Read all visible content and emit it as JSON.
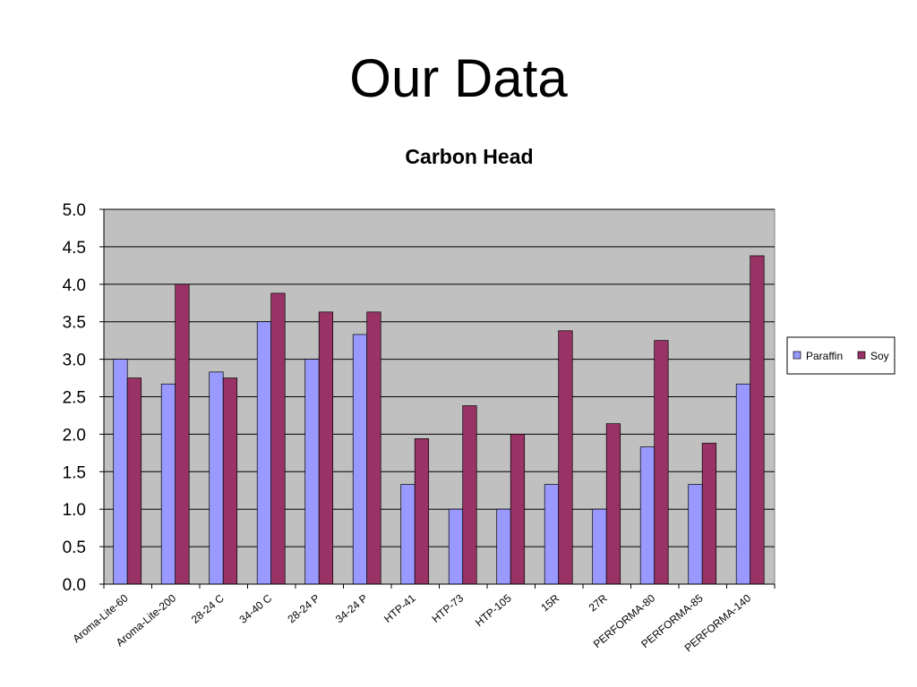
{
  "slide": {
    "title": "Our Data"
  },
  "chart_data": {
    "type": "bar",
    "title": "Carbon Head",
    "xlabel": "",
    "ylabel": "",
    "ylim": [
      0,
      5.0
    ],
    "yticks": [
      "0.0",
      "0.5",
      "1.0",
      "1.5",
      "2.0",
      "2.5",
      "3.0",
      "3.5",
      "4.0",
      "4.5",
      "5.0"
    ],
    "grid": true,
    "legend_position": "right",
    "categories": [
      "Aroma-Lite-60",
      "Aroma-Lite-200",
      "28-24 C",
      "34-40 C",
      "28-24 P",
      "34-24 P",
      "HTP-41",
      "HTP-73",
      "HTP-105",
      "15R",
      "27R",
      "PERFORMA-80",
      "PERFORMA-85",
      "PERFORMA-140"
    ],
    "series": [
      {
        "name": "Paraffin",
        "color": "#9999ff",
        "values": [
          3.0,
          2.67,
          2.83,
          3.5,
          3.0,
          3.33,
          1.33,
          1.0,
          1.0,
          1.33,
          1.0,
          1.83,
          1.33,
          2.67
        ]
      },
      {
        "name": "Soy",
        "color": "#993366",
        "values": [
          2.75,
          4.0,
          2.75,
          3.88,
          3.63,
          3.63,
          1.94,
          2.38,
          2.0,
          3.38,
          2.14,
          3.25,
          1.88,
          4.38
        ]
      }
    ],
    "plot_background": "#c0c0c0"
  }
}
